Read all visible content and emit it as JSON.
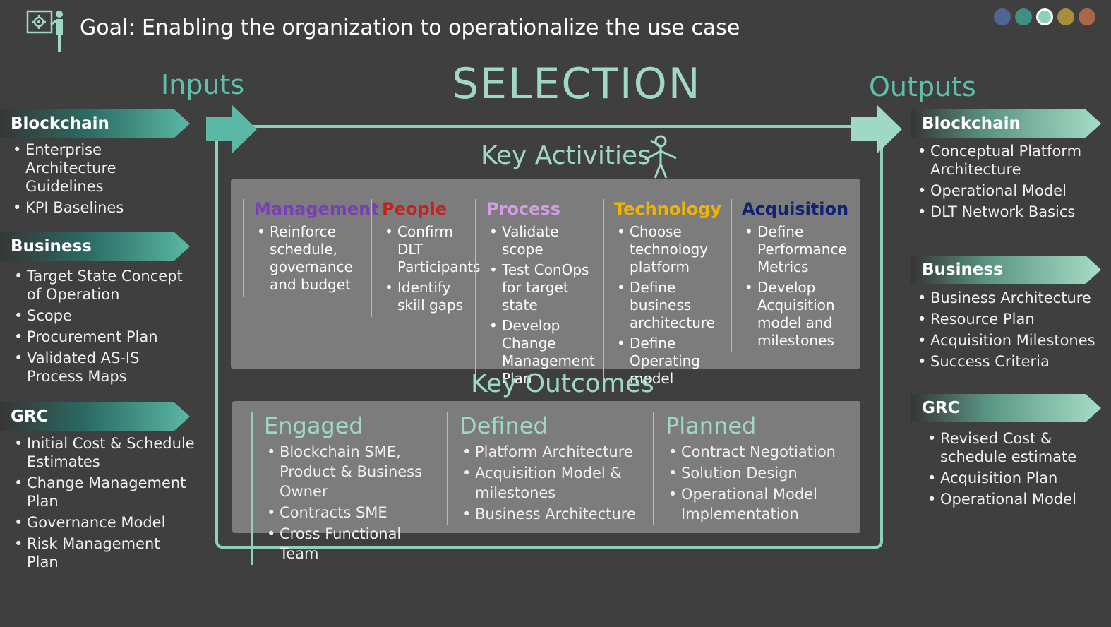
{
  "header": {
    "title": "Goal: Enabling the organization to operationalize the use case",
    "nav_dots": [
      {
        "color": "#4f6593",
        "active": false
      },
      {
        "color": "#3f8f82",
        "active": false
      },
      {
        "color": "#8fd0b8",
        "active": true
      },
      {
        "color": "#a68e3c",
        "active": false
      },
      {
        "color": "#a9674a",
        "active": false
      }
    ]
  },
  "labels": {
    "inputs": "Inputs",
    "selection": "SELECTION",
    "outputs": "Outputs",
    "key_activities": "Key Activities",
    "key_outcomes": "Key Outcomes"
  },
  "inputs": [
    {
      "title": "Blockchain",
      "items": [
        "Enterprise Architecture Guidelines",
        "KPI Baselines"
      ]
    },
    {
      "title": "Business",
      "items": [
        "Target State Concept of Operation",
        "Scope",
        "Procurement Plan",
        "Validated AS-IS Process Maps"
      ]
    },
    {
      "title": "GRC",
      "items": [
        "Initial Cost & Schedule Estimates",
        "Change Management Plan",
        "Governance Model",
        "Risk Management Plan"
      ]
    }
  ],
  "outputs": [
    {
      "title": "Blockchain",
      "items": [
        "Conceptual Platform Architecture",
        "Operational Model",
        "DLT Network Basics"
      ]
    },
    {
      "title": "Business",
      "items": [
        "Business Architecture",
        "Resource Plan",
        "Acquisition Milestones",
        "Success Criteria"
      ]
    },
    {
      "title": "GRC",
      "items": [
        "Revised Cost & schedule estimate",
        "Acquisition Plan",
        "Operational Model"
      ]
    }
  ],
  "activities": [
    {
      "title": "Management",
      "color": "#7a3fb8",
      "items": [
        "Reinforce schedule, governance and budget"
      ]
    },
    {
      "title": "People",
      "color": "#c81e1e",
      "items": [
        "Confirm DLT Participants",
        "Identify skill gaps"
      ]
    },
    {
      "title": "Process",
      "color": "#d59be6",
      "items": [
        "Validate scope",
        "Test ConOps for target state",
        "Develop Change Management Plan"
      ]
    },
    {
      "title": "Technology",
      "color": "#f0b400",
      "items": [
        "Choose technology platform",
        "Define business architecture",
        "Define Operating model"
      ]
    },
    {
      "title": "Acquisition",
      "color": "#0f2272",
      "items": [
        "Define Performance Metrics",
        "Develop Acquisition model and milestones"
      ]
    }
  ],
  "outcomes": [
    {
      "title": "Engaged",
      "items": [
        "Blockchain SME, Product & Business Owner",
        "Contracts SME",
        "Cross Functional Team"
      ]
    },
    {
      "title": "Defined",
      "items": [
        "Platform Architecture",
        "Acquisition Model & milestones",
        "Business Architecture"
      ]
    },
    {
      "title": "Planned",
      "items": [
        "Contract Negotiation",
        "Solution Design",
        "Operational Model Implementation"
      ]
    }
  ]
}
